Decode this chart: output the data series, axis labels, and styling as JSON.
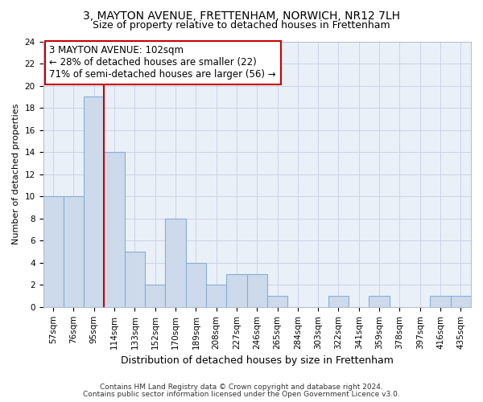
{
  "title": "3, MAYTON AVENUE, FRETTENHAM, NORWICH, NR12 7LH",
  "subtitle": "Size of property relative to detached houses in Frettenham",
  "xlabel": "Distribution of detached houses by size in Frettenham",
  "ylabel": "Number of detached properties",
  "categories": [
    "57sqm",
    "76sqm",
    "95sqm",
    "114sqm",
    "133sqm",
    "152sqm",
    "170sqm",
    "189sqm",
    "208sqm",
    "227sqm",
    "246sqm",
    "265sqm",
    "284sqm",
    "303sqm",
    "322sqm",
    "341sqm",
    "359sqm",
    "378sqm",
    "397sqm",
    "416sqm",
    "435sqm"
  ],
  "values": [
    10,
    10,
    19,
    14,
    5,
    2,
    8,
    4,
    2,
    3,
    3,
    1,
    0,
    0,
    1,
    0,
    1,
    0,
    0,
    1,
    1
  ],
  "bar_color": "#ccdaec",
  "bar_edgecolor": "#8aaed4",
  "redline_index": 2.5,
  "annotation_lines": [
    "3 MAYTON AVENUE: 102sqm",
    "← 28% of detached houses are smaller (22)",
    "71% of semi-detached houses are larger (56) →"
  ],
  "annotation_box_color": "#ffffff",
  "annotation_box_edgecolor": "#cc0000",
  "redline_color": "#cc0000",
  "ylim": [
    0,
    24
  ],
  "yticks": [
    0,
    2,
    4,
    6,
    8,
    10,
    12,
    14,
    16,
    18,
    20,
    22,
    24
  ],
  "grid_color": "#c8d4e8",
  "bg_color": "#eaf0f8",
  "footer_line1": "Contains HM Land Registry data © Crown copyright and database right 2024.",
  "footer_line2": "Contains public sector information licensed under the Open Government Licence v3.0.",
  "title_fontsize": 10,
  "subtitle_fontsize": 9,
  "xlabel_fontsize": 9,
  "ylabel_fontsize": 8,
  "tick_fontsize": 7.5,
  "annotation_fontsize": 8.5,
  "footer_fontsize": 6.5
}
